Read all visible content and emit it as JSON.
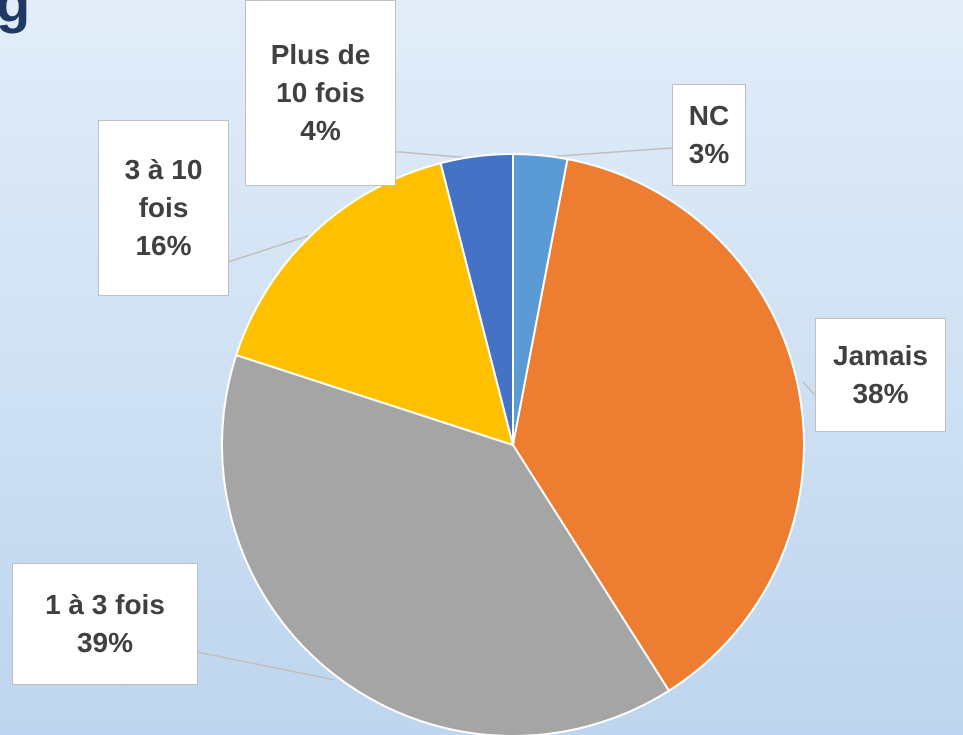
{
  "chart_data": {
    "type": "pie",
    "title": "g",
    "categories": [
      "NC",
      "Jamais",
      "1 à 3 fois",
      "3 à 10 fois",
      "Plus de 10 fois"
    ],
    "values": [
      3,
      38,
      39,
      16,
      4
    ],
    "value_labels": [
      "3%",
      "38%",
      "39%",
      "16%",
      "4%"
    ],
    "colors": [
      "#5b9bd5",
      "#ed7d31",
      "#a5a5a5",
      "#ffc000",
      "#4472c4"
    ]
  }
}
